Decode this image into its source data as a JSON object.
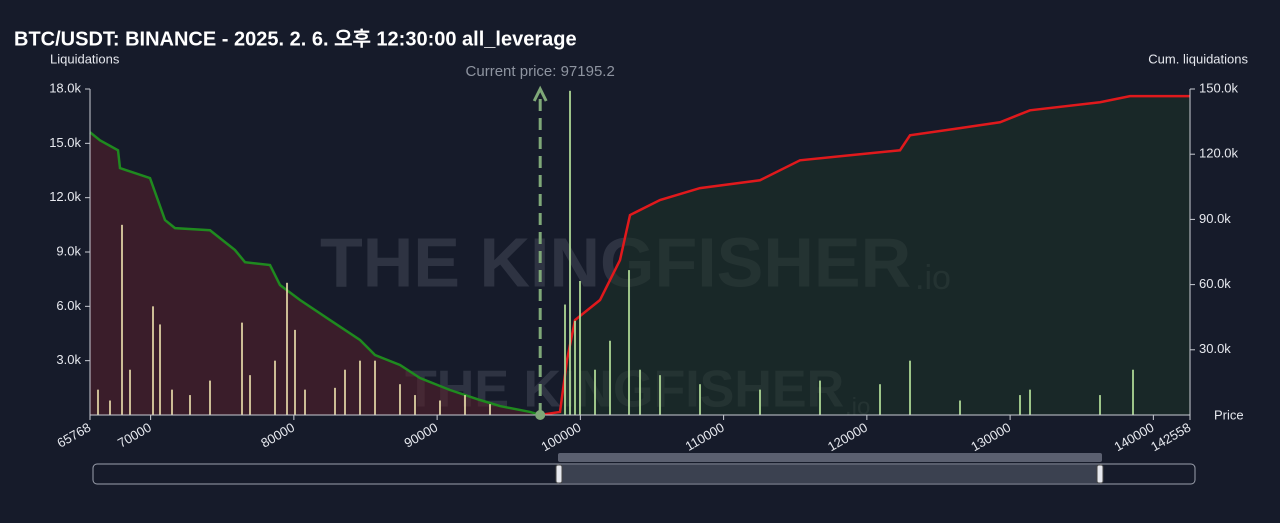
{
  "chart_data": {
    "type": "liquidation-map",
    "title": "BTC/USDT: BINANCE - 2025. 2. 6. 오후 12:30:00 all_leverage",
    "y_label": "Liquidations",
    "y2_label": "Cum. liquidations",
    "x_label": "Price",
    "watermark": "THE KINGFISHER",
    "watermark_suffix": ".io",
    "current_price": {
      "value": 97195.2,
      "label": "Current price: 97195.2",
      "color": "#7fa878"
    },
    "xlim": [
      65768,
      142558
    ],
    "xticks": [
      65768,
      70000,
      80000,
      90000,
      100000,
      110000,
      120000,
      130000,
      140000,
      142558
    ],
    "ylim": [
      0,
      18000
    ],
    "yticks": [
      {
        "value": 3000,
        "label": "3.0k"
      },
      {
        "value": 6000,
        "label": "6.0k"
      },
      {
        "value": 9000,
        "label": "9.0k"
      },
      {
        "value": 12000,
        "label": "12.0k"
      },
      {
        "value": 15000,
        "label": "15.0k"
      },
      {
        "value": 18000,
        "label": "18.0k"
      }
    ],
    "y2lim": [
      0,
      150000
    ],
    "y2ticks": [
      {
        "value": 30000,
        "label": "30.0k"
      },
      {
        "value": 60000,
        "label": "60.0k"
      },
      {
        "value": 90000,
        "label": "90.0k"
      },
      {
        "value": 120000,
        "label": "120.0k"
      },
      {
        "value": 150000,
        "label": "150.0k"
      }
    ],
    "series": [
      {
        "kind": "bar",
        "color": "#e6d9a8",
        "x": [
          66326,
          67164,
          68002,
          68560,
          70166,
          70655,
          71492,
          72749,
          74145,
          76379,
          76938,
          78683,
          79521,
          80079,
          80777,
          82871,
          83569,
          84617,
          85664,
          87409,
          88456,
          90201,
          91946,
          93691
        ],
        "values": [
          1400,
          800,
          10500,
          2500,
          6000,
          5000,
          1400,
          1100,
          1900,
          5100,
          2200,
          3000,
          7300,
          4700,
          1400,
          1500,
          2500,
          3000,
          3000,
          1700,
          1100,
          800,
          1100,
          600
        ]
      },
      {
        "kind": "bar",
        "color": "#b5e09a",
        "x": [
          98928,
          99277,
          99626,
          99975,
          101022,
          102069,
          103396,
          104164,
          105560,
          108352,
          112540,
          116728,
          120917,
          123012,
          126502,
          130691,
          131389,
          136275,
          138579
        ],
        "values": [
          6100,
          17900,
          5200,
          7400,
          2500,
          4100,
          8000,
          2500,
          2200,
          1700,
          1400,
          1900,
          1700,
          3000,
          800,
          1100,
          1400,
          1100,
          2500
        ]
      },
      {
        "kind": "area",
        "axis": "y2",
        "color": "#1f8a1f",
        "fill": "#5a1f2a",
        "x": [
          65768,
          66466,
          67723,
          67862,
          69957,
          71004,
          71702,
          74145,
          75890,
          76588,
          78334,
          79032,
          80428,
          82522,
          84617,
          85664,
          87409,
          88805,
          90900,
          92994,
          94390,
          96484,
          97186
        ],
        "values": [
          130100,
          126400,
          121800,
          113600,
          109000,
          89700,
          86000,
          85000,
          75900,
          70300,
          69000,
          59800,
          52900,
          43700,
          34500,
          27600,
          23000,
          17000,
          11500,
          6900,
          4100,
          1400,
          0
        ]
      },
      {
        "kind": "area",
        "axis": "y2",
        "color": "#e0191c",
        "fill": "#1d3326",
        "x": [
          97186,
          98579,
          99068,
          99626,
          101371,
          102767,
          103465,
          105560,
          108352,
          112540,
          115333,
          118823,
          122314,
          123012,
          126502,
          129294,
          131389,
          136275,
          138370,
          142558
        ],
        "values": [
          0,
          1400,
          25300,
          43700,
          52900,
          71300,
          92000,
          98900,
          104400,
          108000,
          117200,
          119500,
          121800,
          128700,
          132000,
          134700,
          140200,
          143900,
          146700,
          146700
        ]
      }
    ]
  }
}
